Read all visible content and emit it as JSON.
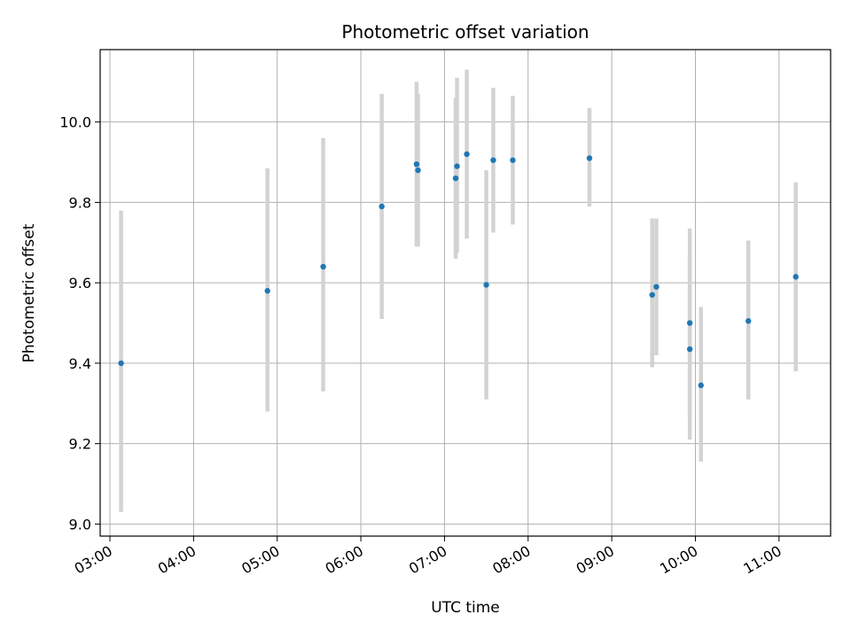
{
  "chart_data": {
    "type": "scatter",
    "title": "Photometric offset variation",
    "xlabel": "UTC time",
    "ylabel": "Photometric offset",
    "x_unit": "UTC",
    "xlim": [
      "02:53",
      "11:37"
    ],
    "ylim": [
      8.97,
      10.18
    ],
    "x_ticks": [
      "03:00",
      "04:00",
      "05:00",
      "06:00",
      "07:00",
      "08:00",
      "09:00",
      "10:00",
      "11:00"
    ],
    "y_ticks": [
      "9.0",
      "9.2",
      "9.4",
      "9.6",
      "9.8",
      "10.0"
    ],
    "grid": true,
    "marker_color": "#1f77b4",
    "errorbar_color": "#d3d3d3",
    "points": [
      {
        "x": "03:08",
        "y": 9.4,
        "ylow": 9.03,
        "yhigh": 9.78
      },
      {
        "x": "04:53",
        "y": 9.58,
        "ylow": 9.28,
        "yhigh": 9.885
      },
      {
        "x": "05:33",
        "y": 9.64,
        "ylow": 9.33,
        "yhigh": 9.96
      },
      {
        "x": "06:15",
        "y": 9.79,
        "ylow": 9.51,
        "yhigh": 10.07
      },
      {
        "x": "06:40",
        "y": 9.895,
        "ylow": 9.69,
        "yhigh": 10.1
      },
      {
        "x": "06:41",
        "y": 9.88,
        "ylow": 9.69,
        "yhigh": 10.07
      },
      {
        "x": "07:08",
        "y": 9.86,
        "ylow": 9.66,
        "yhigh": 10.06
      },
      {
        "x": "07:09",
        "y": 9.89,
        "ylow": 9.675,
        "yhigh": 10.11
      },
      {
        "x": "07:16",
        "y": 9.92,
        "ylow": 9.71,
        "yhigh": 10.13
      },
      {
        "x": "07:30",
        "y": 9.595,
        "ylow": 9.31,
        "yhigh": 9.88
      },
      {
        "x": "07:35",
        "y": 9.905,
        "ylow": 9.725,
        "yhigh": 10.085
      },
      {
        "x": "07:49",
        "y": 9.905,
        "ylow": 9.745,
        "yhigh": 10.065
      },
      {
        "x": "08:44",
        "y": 9.91,
        "ylow": 9.79,
        "yhigh": 10.035
      },
      {
        "x": "09:29",
        "y": 9.57,
        "ylow": 9.39,
        "yhigh": 9.76
      },
      {
        "x": "09:32",
        "y": 9.59,
        "ylow": 9.42,
        "yhigh": 9.76
      },
      {
        "x": "09:56",
        "y": 9.5,
        "ylow": 9.26,
        "yhigh": 9.735
      },
      {
        "x": "09:56",
        "y": 9.435,
        "ylow": 9.21,
        "yhigh": 9.665
      },
      {
        "x": "10:04",
        "y": 9.345,
        "ylow": 9.155,
        "yhigh": 9.54
      },
      {
        "x": "10:38",
        "y": 9.505,
        "ylow": 9.31,
        "yhigh": 9.705
      },
      {
        "x": "11:12",
        "y": 9.615,
        "ylow": 9.38,
        "yhigh": 9.85
      }
    ]
  }
}
